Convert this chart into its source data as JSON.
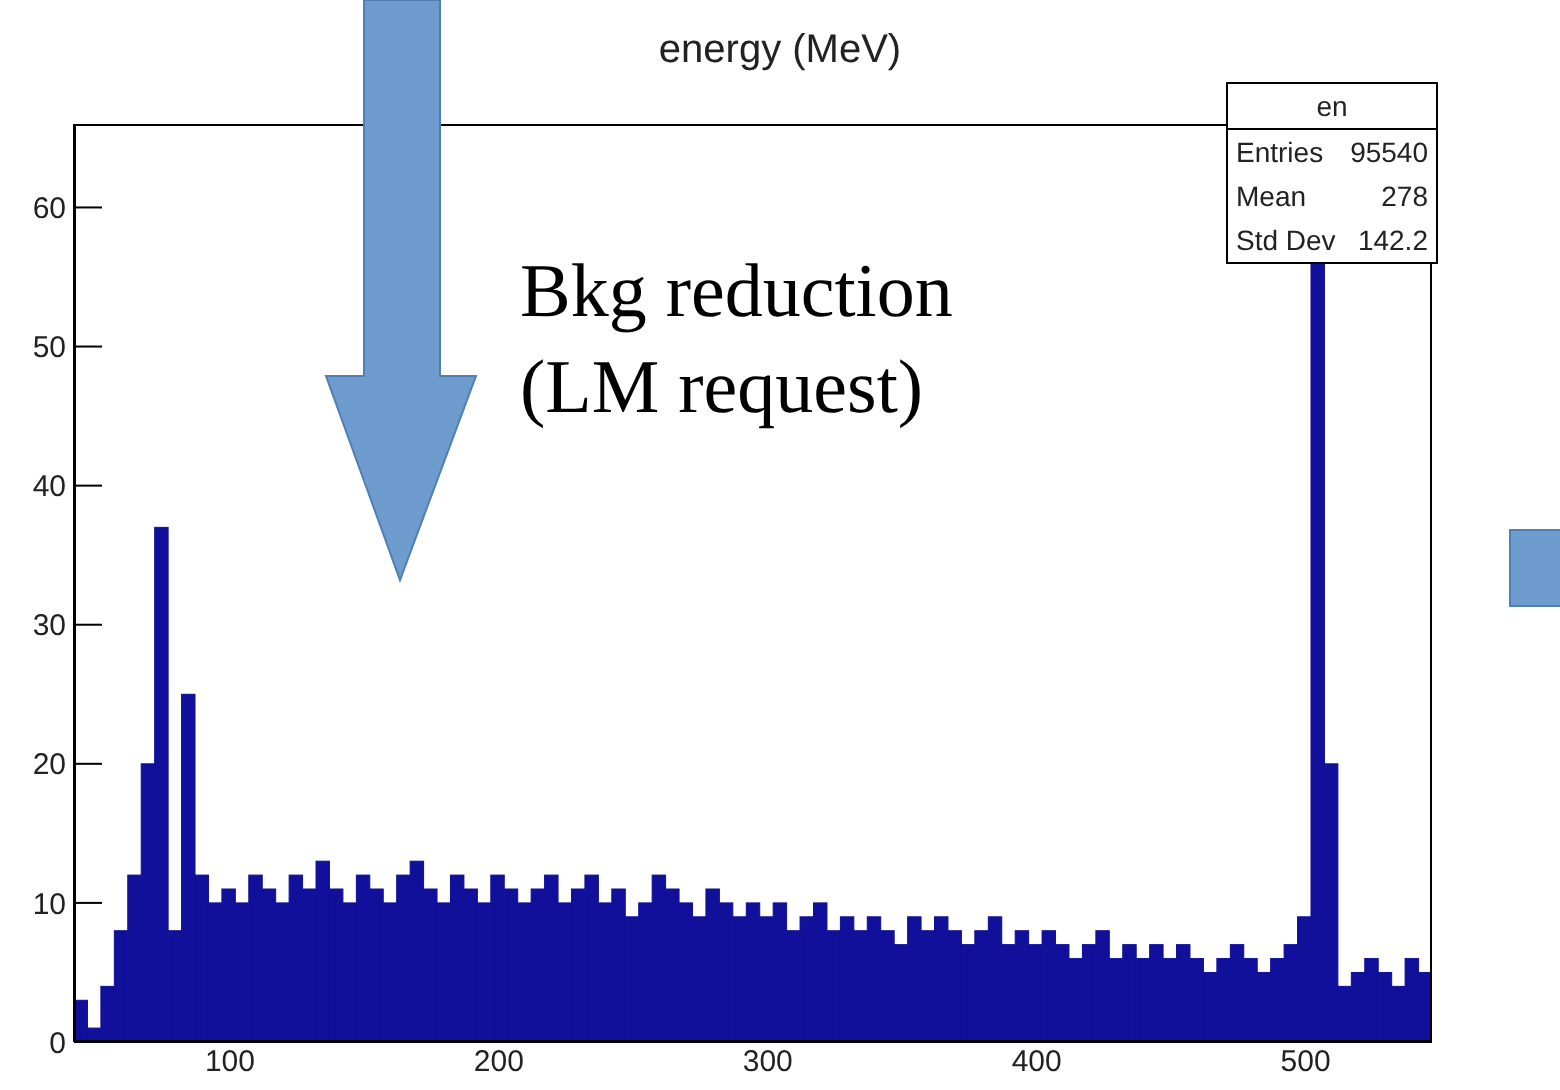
{
  "chart_data": {
    "type": "histogram",
    "title": "energy (MeV)",
    "bins": [
      42,
      47,
      52,
      57,
      62,
      67,
      72,
      77,
      82,
      87,
      92,
      97,
      102,
      107,
      112,
      117,
      122,
      127,
      132,
      137,
      142,
      147,
      152,
      157,
      162,
      167,
      172,
      177,
      182,
      187,
      192,
      197,
      202,
      207,
      212,
      217,
      222,
      227,
      232,
      237,
      242,
      247,
      252,
      257,
      262,
      267,
      272,
      277,
      282,
      287,
      292,
      297,
      302,
      307,
      312,
      317,
      322,
      327,
      332,
      337,
      342,
      347,
      352,
      357,
      362,
      367,
      372,
      377,
      382,
      387,
      392,
      397,
      402,
      407,
      412,
      417,
      422,
      427,
      432,
      437,
      442,
      447,
      452,
      457,
      462,
      467,
      472,
      477,
      482,
      487,
      492,
      497,
      502,
      507,
      512,
      517,
      522,
      527,
      532,
      537,
      542,
      547
    ],
    "values": [
      3,
      1,
      4,
      8,
      12,
      20,
      37,
      8,
      25,
      12,
      10,
      11,
      10,
      12,
      11,
      10,
      12,
      11,
      13,
      11,
      10,
      12,
      11,
      10,
      12,
      13,
      11,
      10,
      12,
      11,
      10,
      12,
      11,
      10,
      11,
      12,
      10,
      11,
      12,
      10,
      11,
      9,
      10,
      12,
      11,
      10,
      9,
      11,
      10,
      9,
      10,
      9,
      10,
      8,
      9,
      10,
      8,
      9,
      8,
      9,
      8,
      7,
      9,
      8,
      9,
      8,
      7,
      8,
      9,
      7,
      8,
      7,
      8,
      7,
      6,
      7,
      8,
      6,
      7,
      6,
      7,
      6,
      7,
      6,
      5,
      6,
      7,
      6,
      5,
      6,
      7,
      9,
      56,
      20,
      4,
      5,
      6,
      5,
      4,
      6,
      5
    ],
    "color": "#10109a",
    "xlim": [
      42,
      547
    ],
    "xticks": [
      100,
      200,
      300,
      400,
      500
    ],
    "ylim": [
      0,
      66
    ],
    "yticks": [
      0,
      10,
      20,
      30,
      40,
      50,
      60
    ],
    "annotations": [
      "Bkg reduction\n(LM request)",
      "en",
      "Entries",
      "95540",
      "Mean",
      "278",
      "Std Dev",
      "142.2"
    ]
  }
}
